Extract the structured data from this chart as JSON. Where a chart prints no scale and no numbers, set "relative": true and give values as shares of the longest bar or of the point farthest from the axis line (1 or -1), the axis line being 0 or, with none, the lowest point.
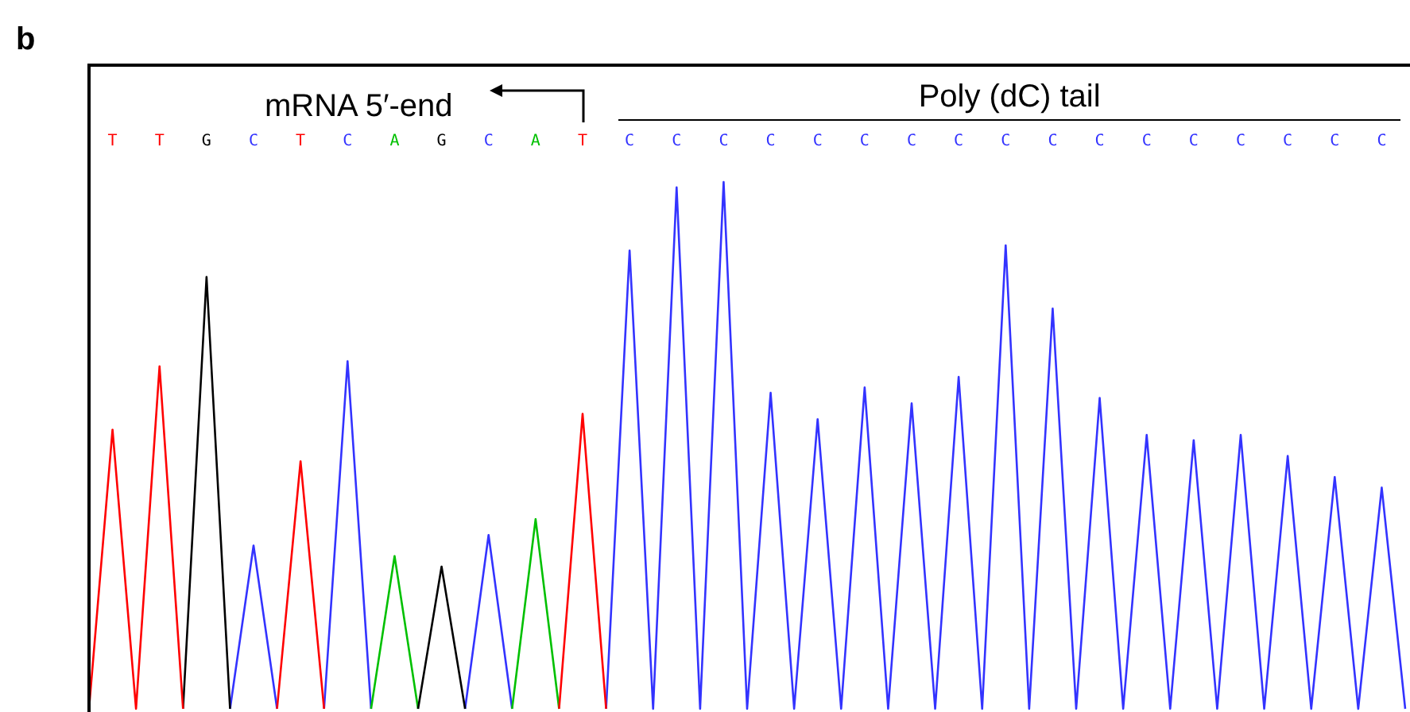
{
  "chart_data": {
    "type": "line",
    "relative": true,
    "marker": "none",
    "line_style": "solid",
    "legend": false,
    "categories": [
      null,
      "T",
      null,
      "T",
      null,
      "G",
      null,
      "C",
      null,
      "T",
      null,
      "C",
      null,
      "A",
      null,
      "G",
      null,
      "C",
      null,
      "A",
      null,
      "T",
      null,
      "C",
      null,
      "C",
      null,
      "C",
      null,
      "C",
      null,
      "C",
      null,
      "C",
      null,
      "C",
      null,
      "C",
      null,
      "C",
      null,
      "C",
      null,
      "C",
      null,
      "C",
      null,
      "C",
      null,
      "C",
      null,
      "C",
      null,
      "C",
      null,
      "C",
      null
    ],
    "series": [
      {
        "color": "#ff0000",
        "values": [
          0,
          0.53,
          0,
          0.65,
          0,
          null,
          null,
          null,
          0,
          0.47,
          0,
          null,
          null,
          null,
          null,
          null,
          null,
          null,
          null,
          null,
          0,
          0.56,
          0,
          null,
          null,
          null,
          null,
          null,
          null,
          null,
          null,
          null,
          null,
          null,
          null,
          null,
          null,
          null,
          null,
          null,
          null,
          null,
          null,
          null,
          null,
          null,
          null,
          null,
          null,
          null,
          null,
          null,
          null,
          null,
          null,
          null,
          null
        ]
      },
      {
        "color": "#000000",
        "values": [
          null,
          null,
          null,
          null,
          0,
          0.82,
          0,
          null,
          null,
          null,
          null,
          null,
          null,
          null,
          0,
          0.27,
          0,
          null,
          null,
          null,
          null,
          null,
          null,
          null,
          null,
          null,
          null,
          null,
          null,
          null,
          null,
          null,
          null,
          null,
          null,
          null,
          null,
          null,
          null,
          null,
          null,
          null,
          null,
          null,
          null,
          null,
          null,
          null,
          null,
          null,
          null,
          null,
          null,
          null,
          null,
          null,
          null
        ]
      },
      {
        "color": "#00c000",
        "values": [
          null,
          null,
          null,
          null,
          null,
          null,
          null,
          null,
          null,
          null,
          null,
          null,
          0,
          0.29,
          0,
          null,
          null,
          null,
          0,
          0.36,
          0,
          null,
          null,
          null,
          null,
          null,
          null,
          null,
          null,
          null,
          null,
          null,
          null,
          null,
          null,
          null,
          null,
          null,
          null,
          null,
          null,
          null,
          null,
          null,
          null,
          null,
          null,
          null,
          null,
          null,
          null,
          null,
          null,
          null,
          null,
          null,
          null
        ]
      },
      {
        "color": "#3333ff",
        "values": [
          null,
          null,
          null,
          null,
          null,
          null,
          0,
          0.31,
          0,
          null,
          0,
          0.66,
          0,
          null,
          null,
          null,
          0,
          0.33,
          0,
          null,
          null,
          null,
          0,
          0.87,
          0,
          0.99,
          0,
          1,
          0,
          0.6,
          0,
          0.55,
          0,
          0.61,
          0,
          0.58,
          0,
          0.63,
          0,
          0.88,
          0,
          0.76,
          0,
          0.59,
          0,
          0.52,
          0,
          0.51,
          0,
          0.52,
          0,
          0.48,
          0,
          0.44,
          0,
          0.42,
          0
        ]
      }
    ],
    "annotations": [
      "b",
      "mRNA 5′-end",
      "Poly (dC) tail"
    ]
  }
}
